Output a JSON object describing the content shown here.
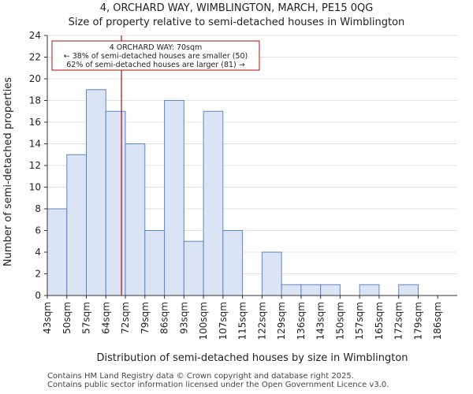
{
  "title_line1": "4, ORCHARD WAY, WIMBLINGTON, MARCH, PE15 0QG",
  "title_line2": "Size of property relative to semi-detached houses in Wimblington",
  "footer_line1": "Contains HM Land Registry data © Crown copyright and database right 2025.",
  "footer_line2": "Contains public sector information licensed under the Open Government Licence v3.0.",
  "colors": {
    "bar_fill": "#dae4f5",
    "bar_stroke": "#5b86c4",
    "marker": "#aa1111",
    "grid": "#e0e0e0"
  },
  "chart_data": {
    "type": "bar",
    "categories": [
      "43sqm",
      "50sqm",
      "57sqm",
      "64sqm",
      "72sqm",
      "79sqm",
      "86sqm",
      "93sqm",
      "100sqm",
      "107sqm",
      "115sqm",
      "122sqm",
      "129sqm",
      "136sqm",
      "143sqm",
      "150sqm",
      "157sqm",
      "165sqm",
      "172sqm",
      "179sqm",
      "186sqm"
    ],
    "values": [
      8,
      13,
      19,
      17,
      14,
      6,
      18,
      5,
      17,
      6,
      0,
      4,
      1,
      1,
      1,
      0,
      1,
      0,
      1,
      0,
      0
    ],
    "xlabel": "Distribution of semi-detached houses by size in Wimblington",
    "ylabel": "Number of semi-detached properties",
    "ylim": [
      0,
      24
    ],
    "yticks": [
      0,
      2,
      4,
      6,
      8,
      10,
      12,
      14,
      16,
      18,
      20,
      22,
      24
    ],
    "marker_value": 3.8,
    "annotation": {
      "line1": "4 ORCHARD WAY: 70sqm",
      "line2": "← 38% of semi-detached houses are smaller (50)",
      "line3": "62% of semi-detached houses are larger (81) →"
    }
  }
}
